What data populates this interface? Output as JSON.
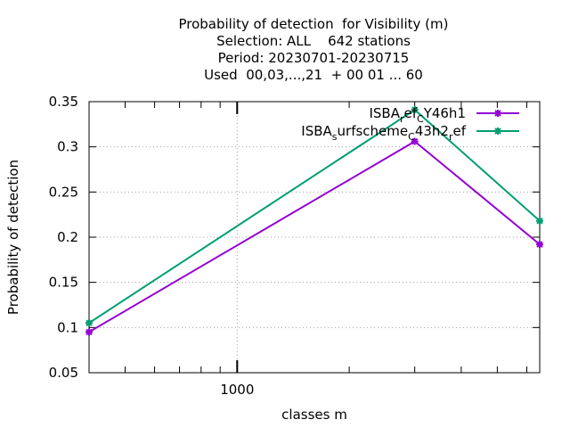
{
  "chart_data": {
    "type": "line",
    "title_lines": [
      "Probability of detection  for Visibility (m)",
      "Selection: ALL    642 stations",
      "Period: 20230701-20230715",
      "Used  00,03,...,21  + 00 01 ... 60"
    ],
    "xlabel": "classes m",
    "ylabel": "Probability of detection",
    "x_scale": "log",
    "xlim": [
      400,
      6500
    ],
    "ylim": [
      0.05,
      0.35
    ],
    "y_ticks": [
      0.05,
      0.1,
      0.15,
      0.2,
      0.25,
      0.3,
      0.35
    ],
    "y_tick_labels": [
      "0.05",
      "0.1",
      "0.15",
      "0.2",
      "0.25",
      "0.3",
      "0.35"
    ],
    "x_ticks": [
      1000
    ],
    "x_tick_labels": [
      "1000"
    ],
    "grid": true,
    "legend_position": "top-right",
    "x": [
      400,
      3000,
      6500
    ],
    "series": [
      {
        "name": "ISBA_ref_CY46h1",
        "legend_parts": [
          [
            "ISBA",
            ""
          ],
          [
            "r",
            "sub"
          ],
          [
            "ef",
            ""
          ],
          [
            "C",
            "sub"
          ],
          [
            "Y46h1",
            ""
          ]
        ],
        "color": "#9400d3",
        "values": [
          0.095,
          0.306,
          0.192
        ]
      },
      {
        "name": "ISBA_surfscheme_c43h2_ref",
        "legend_parts": [
          [
            "ISBA",
            ""
          ],
          [
            "s",
            "sub"
          ],
          [
            "urfscheme",
            ""
          ],
          [
            "C",
            "sub"
          ],
          [
            "43h2",
            ""
          ],
          [
            "r",
            "sub"
          ],
          [
            "ef",
            ""
          ]
        ],
        "color": "#009e73",
        "values": [
          0.105,
          0.341,
          0.218
        ]
      }
    ]
  }
}
